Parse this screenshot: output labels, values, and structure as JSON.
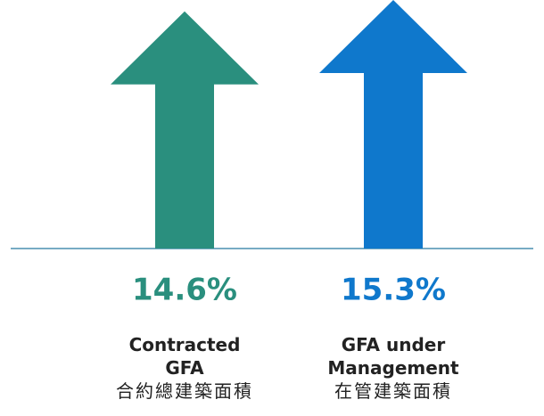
{
  "chart_data": {
    "type": "arrow",
    "categories": [
      "Contracted GFA",
      "GFA under Management"
    ],
    "category_translations": [
      "合約總建築面積",
      "在管建築面積"
    ],
    "values": [
      14.6,
      15.3
    ],
    "value_labels": [
      "14.6%",
      "15.3%"
    ],
    "colors": [
      "#2a8f7e",
      "#0f78cc"
    ]
  }
}
